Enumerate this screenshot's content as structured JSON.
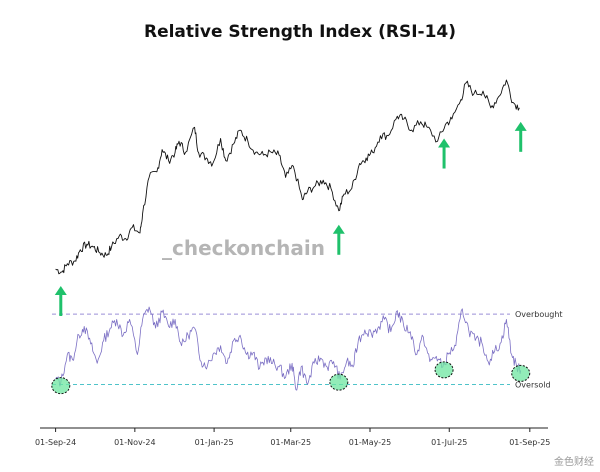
{
  "chart_data": {
    "type": "line",
    "title": "Relative Strength Index (RSI-14)",
    "watermark": "_checkonchain",
    "footer_mark": "金色财经",
    "x_ticks": [
      "01-Sep-24",
      "01-Nov-24",
      "01-Jan-25",
      "01-Mar-25",
      "01-May-25",
      "01-Jul-25",
      "01-Sep-25"
    ],
    "x_range": [
      "2024-08-20",
      "2025-09-15"
    ],
    "levels": [
      {
        "name": "Overbought",
        "value": 70,
        "color": "#9b8fd6"
      },
      {
        "name": "Oversold",
        "value": 30,
        "color": "#4fc3c9"
      }
    ],
    "rsi_range": [
      24,
      78
    ],
    "series": [
      {
        "role": "price",
        "color": "#111111",
        "values": [
          [
            "2024-09-01",
            55
          ],
          [
            "2024-09-06",
            54
          ],
          [
            "2024-09-10",
            57
          ],
          [
            "2024-09-16",
            58
          ],
          [
            "2024-09-20",
            62
          ],
          [
            "2024-09-25",
            64
          ],
          [
            "2024-09-30",
            63
          ],
          [
            "2024-10-05",
            61
          ],
          [
            "2024-10-10",
            60
          ],
          [
            "2024-10-14",
            63
          ],
          [
            "2024-10-20",
            67
          ],
          [
            "2024-10-25",
            66
          ],
          [
            "2024-10-30",
            70
          ],
          [
            "2024-11-05",
            68
          ],
          [
            "2024-11-07",
            75
          ],
          [
            "2024-11-12",
            88
          ],
          [
            "2024-11-18",
            90
          ],
          [
            "2024-11-22",
            98
          ],
          [
            "2024-11-27",
            94
          ],
          [
            "2024-12-02",
            97
          ],
          [
            "2024-12-05",
            101
          ],
          [
            "2024-12-10",
            97
          ],
          [
            "2024-12-17",
            106
          ],
          [
            "2024-12-20",
            97
          ],
          [
            "2024-12-26",
            95
          ],
          [
            "2024-12-31",
            93
          ],
          [
            "2025-01-06",
            102
          ],
          [
            "2025-01-10",
            94
          ],
          [
            "2025-01-16",
            100
          ],
          [
            "2025-01-21",
            105
          ],
          [
            "2025-01-27",
            101
          ],
          [
            "2025-02-02",
            97
          ],
          [
            "2025-02-08",
            96
          ],
          [
            "2025-02-14",
            97
          ],
          [
            "2025-02-20",
            96
          ],
          [
            "2025-02-25",
            88
          ],
          [
            "2025-03-03",
            92
          ],
          [
            "2025-03-10",
            80
          ],
          [
            "2025-03-14",
            83
          ],
          [
            "2025-03-20",
            85
          ],
          [
            "2025-03-26",
            87
          ],
          [
            "2025-04-01",
            84
          ],
          [
            "2025-04-07",
            76
          ],
          [
            "2025-04-11",
            82
          ],
          [
            "2025-04-17",
            84
          ],
          [
            "2025-04-23",
            93
          ],
          [
            "2025-04-28",
            95
          ],
          [
            "2025-05-03",
            97
          ],
          [
            "2025-05-09",
            103
          ],
          [
            "2025-05-15",
            103
          ],
          [
            "2025-05-22",
            110
          ],
          [
            "2025-05-27",
            109
          ],
          [
            "2025-06-02",
            105
          ],
          [
            "2025-06-09",
            108
          ],
          [
            "2025-06-14",
            106
          ],
          [
            "2025-06-22",
            101
          ],
          [
            "2025-06-28",
            107
          ],
          [
            "2025-07-03",
            109
          ],
          [
            "2025-07-10",
            116
          ],
          [
            "2025-07-14",
            122
          ],
          [
            "2025-07-20",
            118
          ],
          [
            "2025-07-27",
            119
          ],
          [
            "2025-08-02",
            113
          ],
          [
            "2025-08-08",
            117
          ],
          [
            "2025-08-14",
            123
          ],
          [
            "2025-08-19",
            115
          ],
          [
            "2025-08-24",
            113
          ]
        ]
      },
      {
        "role": "rsi",
        "color": "#7b6fc4",
        "values": [
          [
            "2024-09-01",
            33
          ],
          [
            "2024-09-05",
            31
          ],
          [
            "2024-09-10",
            47
          ],
          [
            "2024-09-14",
            44
          ],
          [
            "2024-09-19",
            58
          ],
          [
            "2024-09-23",
            63
          ],
          [
            "2024-09-28",
            53
          ],
          [
            "2024-10-03",
            42
          ],
          [
            "2024-10-08",
            55
          ],
          [
            "2024-10-13",
            62
          ],
          [
            "2024-10-18",
            67
          ],
          [
            "2024-10-23",
            58
          ],
          [
            "2024-10-28",
            67
          ],
          [
            "2024-11-03",
            47
          ],
          [
            "2024-11-07",
            67
          ],
          [
            "2024-11-12",
            74
          ],
          [
            "2024-11-17",
            62
          ],
          [
            "2024-11-22",
            71
          ],
          [
            "2024-11-27",
            63
          ],
          [
            "2024-12-02",
            67
          ],
          [
            "2024-12-07",
            52
          ],
          [
            "2024-12-12",
            58
          ],
          [
            "2024-12-17",
            62
          ],
          [
            "2024-12-22",
            43
          ],
          [
            "2024-12-27",
            41
          ],
          [
            "2025-01-01",
            48
          ],
          [
            "2025-01-06",
            52
          ],
          [
            "2025-01-11",
            42
          ],
          [
            "2025-01-16",
            55
          ],
          [
            "2025-01-21",
            58
          ],
          [
            "2025-01-26",
            47
          ],
          [
            "2025-01-31",
            48
          ],
          [
            "2025-02-05",
            39
          ],
          [
            "2025-02-10",
            45
          ],
          [
            "2025-02-15",
            42
          ],
          [
            "2025-02-20",
            40
          ],
          [
            "2025-02-25",
            34
          ],
          [
            "2025-03-02",
            42
          ],
          [
            "2025-03-05",
            27
          ],
          [
            "2025-03-09",
            40
          ],
          [
            "2025-03-14",
            30
          ],
          [
            "2025-03-19",
            42
          ],
          [
            "2025-03-24",
            45
          ],
          [
            "2025-03-29",
            40
          ],
          [
            "2025-04-03",
            43
          ],
          [
            "2025-04-08",
            33
          ],
          [
            "2025-04-13",
            43
          ],
          [
            "2025-04-18",
            40
          ],
          [
            "2025-04-22",
            55
          ],
          [
            "2025-04-27",
            61
          ],
          [
            "2025-05-02",
            59
          ],
          [
            "2025-05-07",
            62
          ],
          [
            "2025-05-12",
            67
          ],
          [
            "2025-05-17",
            60
          ],
          [
            "2025-05-22",
            72
          ],
          [
            "2025-05-27",
            63
          ],
          [
            "2025-06-01",
            60
          ],
          [
            "2025-06-06",
            47
          ],
          [
            "2025-06-11",
            57
          ],
          [
            "2025-06-16",
            43
          ],
          [
            "2025-06-21",
            46
          ],
          [
            "2025-06-26",
            40
          ],
          [
            "2025-07-01",
            48
          ],
          [
            "2025-07-06",
            52
          ],
          [
            "2025-07-11",
            73
          ],
          [
            "2025-07-16",
            61
          ],
          [
            "2025-07-21",
            55
          ],
          [
            "2025-07-26",
            54
          ],
          [
            "2025-07-31",
            43
          ],
          [
            "2025-08-05",
            49
          ],
          [
            "2025-08-10",
            54
          ],
          [
            "2025-08-14",
            67
          ],
          [
            "2025-08-18",
            47
          ],
          [
            "2025-08-22",
            40
          ],
          [
            "2025-08-25",
            38
          ]
        ]
      }
    ],
    "annotations": {
      "up_arrows": [
        "2024-09-05",
        "2025-04-07",
        "2025-06-27",
        "2025-08-25"
      ],
      "circles": [
        "2024-09-05",
        "2025-04-07",
        "2025-06-27",
        "2025-08-25"
      ],
      "color": "#1fc16b"
    }
  }
}
